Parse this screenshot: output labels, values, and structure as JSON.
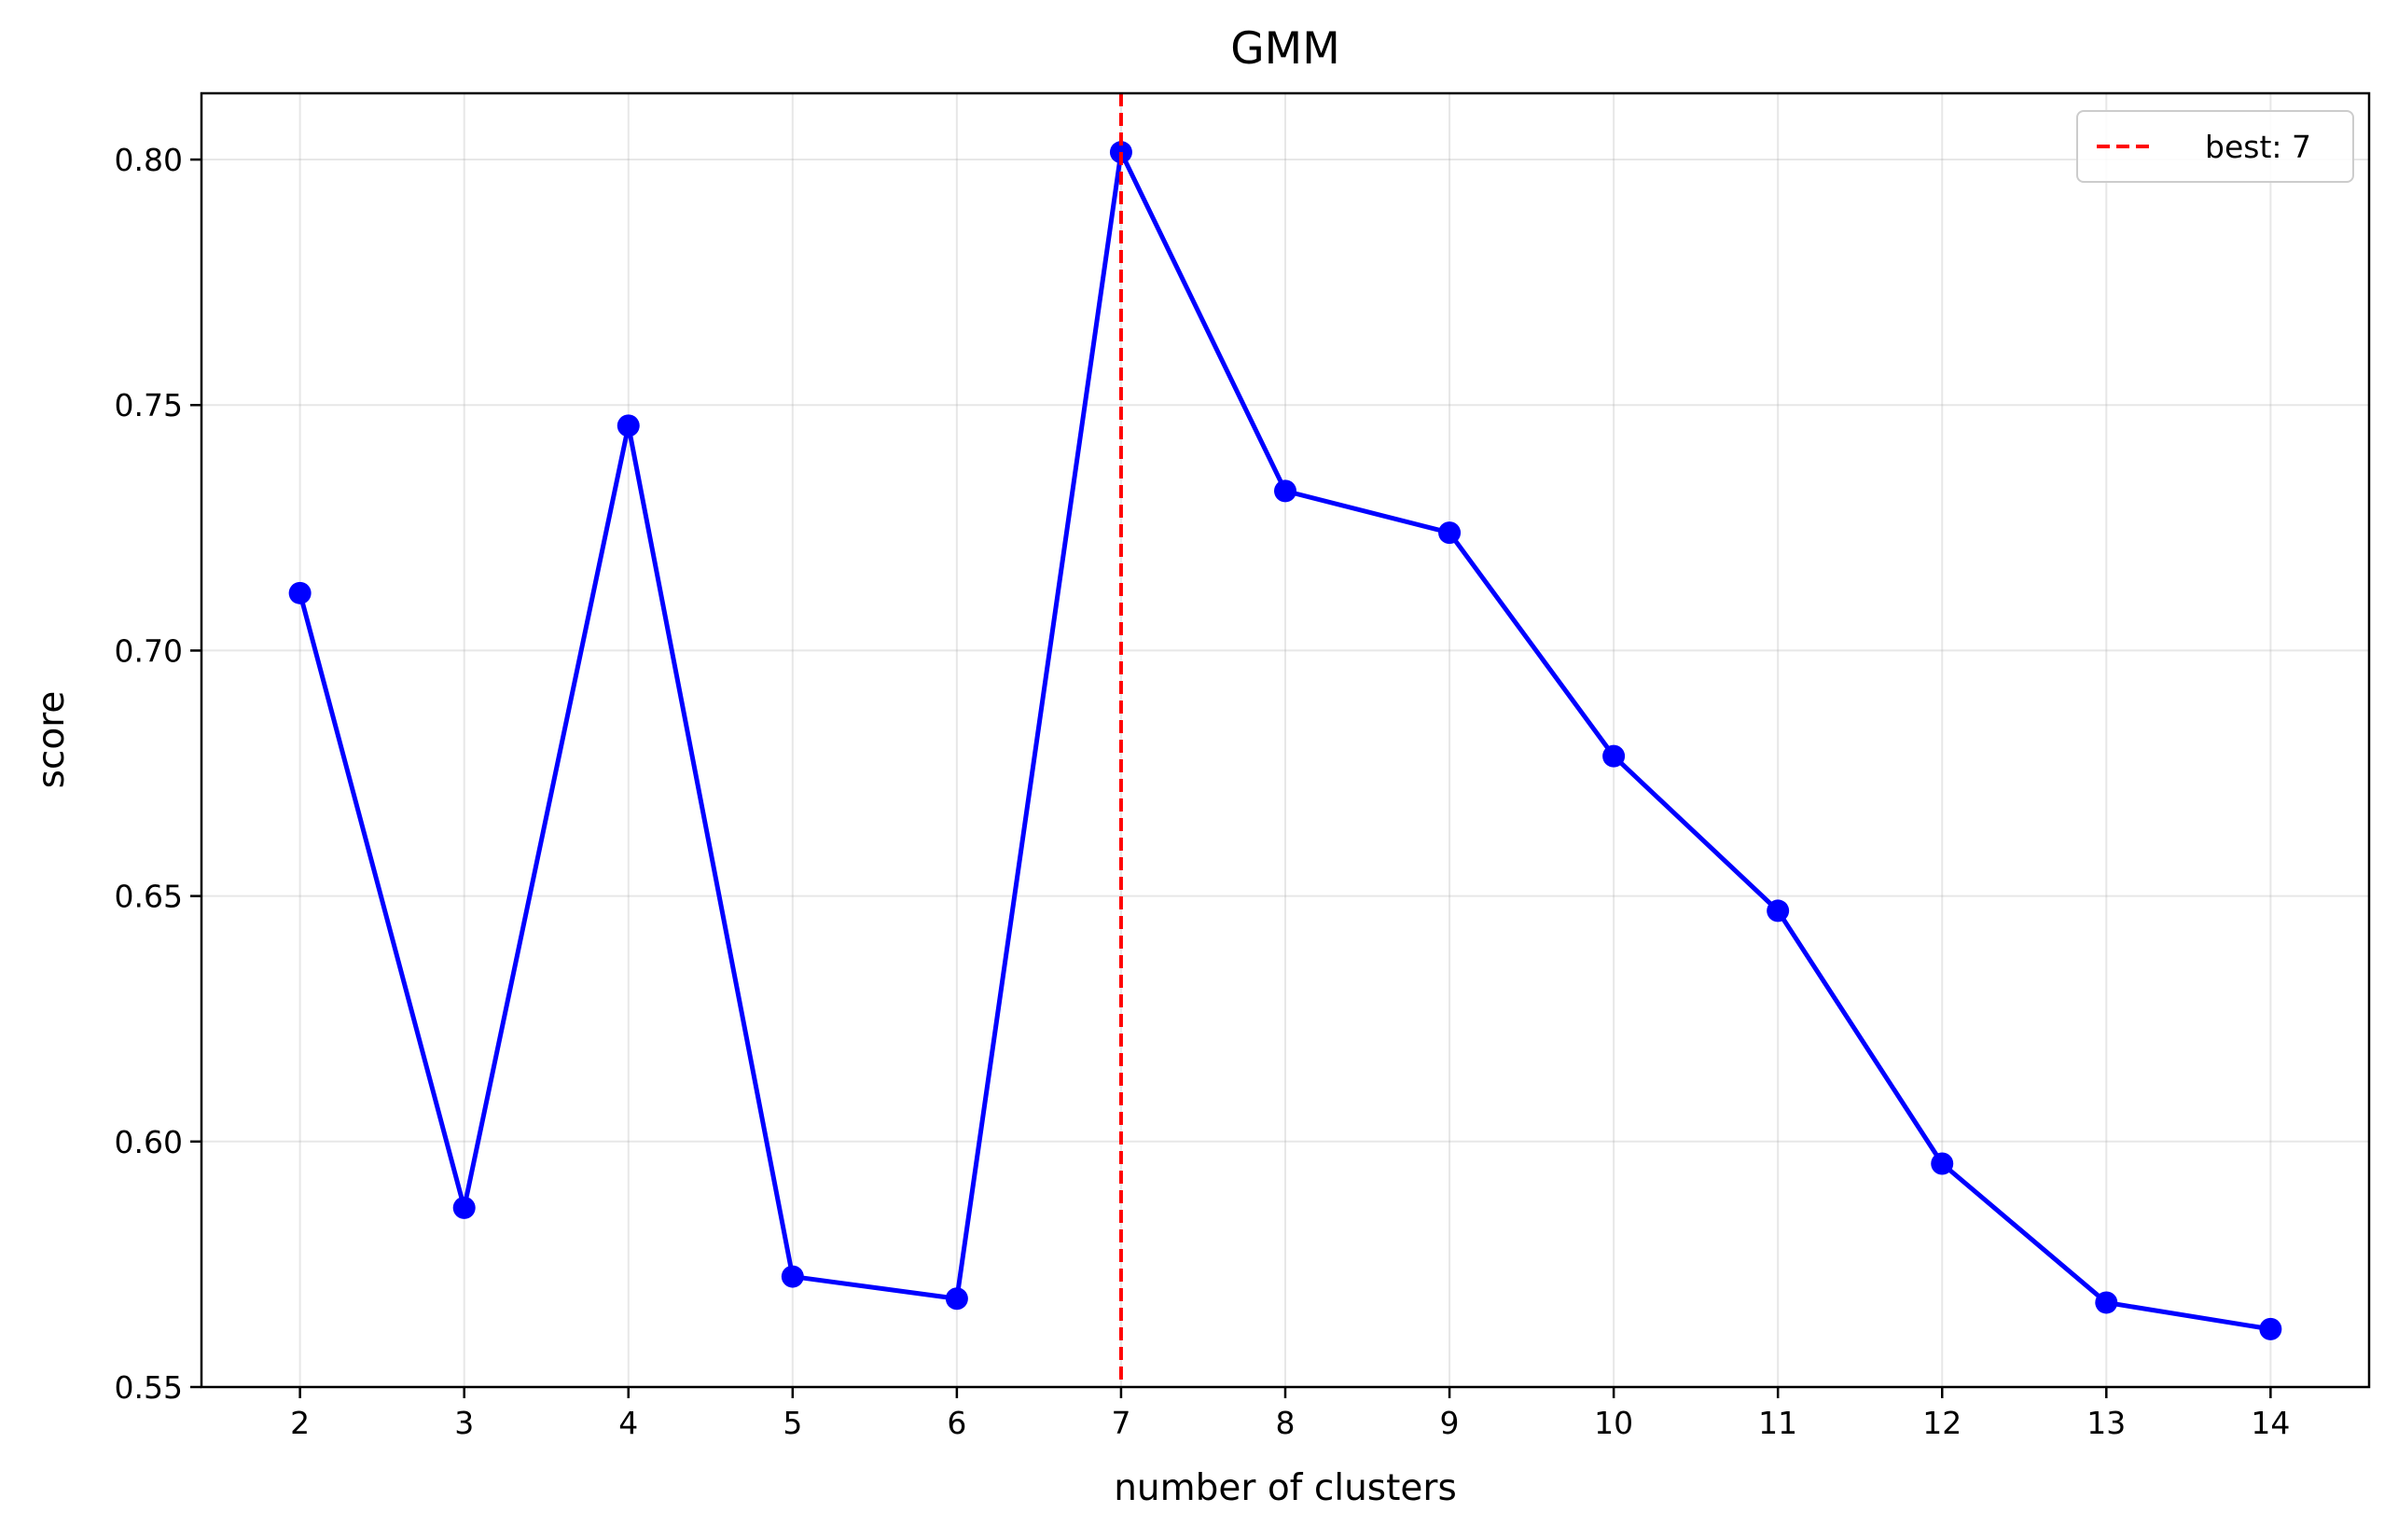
{
  "chart_data": {
    "type": "line",
    "title": "GMM",
    "xlabel": "number of clusters",
    "ylabel": "score",
    "x": [
      2,
      3,
      4,
      5,
      6,
      7,
      8,
      9,
      10,
      11,
      12,
      13,
      14
    ],
    "series": [
      {
        "values": [
          0.7117,
          0.5865,
          0.7458,
          0.5725,
          0.568,
          0.8015,
          0.7325,
          0.724,
          0.6785,
          0.647,
          0.5955,
          0.5672,
          0.5618
        ],
        "color": "#0000ff",
        "marker": "circle"
      }
    ],
    "xticks": [
      "2",
      "3",
      "4",
      "5",
      "6",
      "7",
      "8",
      "9",
      "10",
      "11",
      "12",
      "13",
      "14"
    ],
    "yticks": [
      "0.55",
      "0.60",
      "0.65",
      "0.70",
      "0.75",
      "0.80"
    ],
    "xlim": [
      1.4,
      14.6
    ],
    "ylim": [
      0.55,
      0.8135
    ],
    "grid": true,
    "annotations": [
      {
        "type": "vline",
        "x": 7,
        "color": "#ff0000",
        "style": "dashed",
        "label": "best: 7"
      }
    ],
    "legend": {
      "position": "top-right",
      "entries": [
        "best: 7"
      ]
    }
  }
}
